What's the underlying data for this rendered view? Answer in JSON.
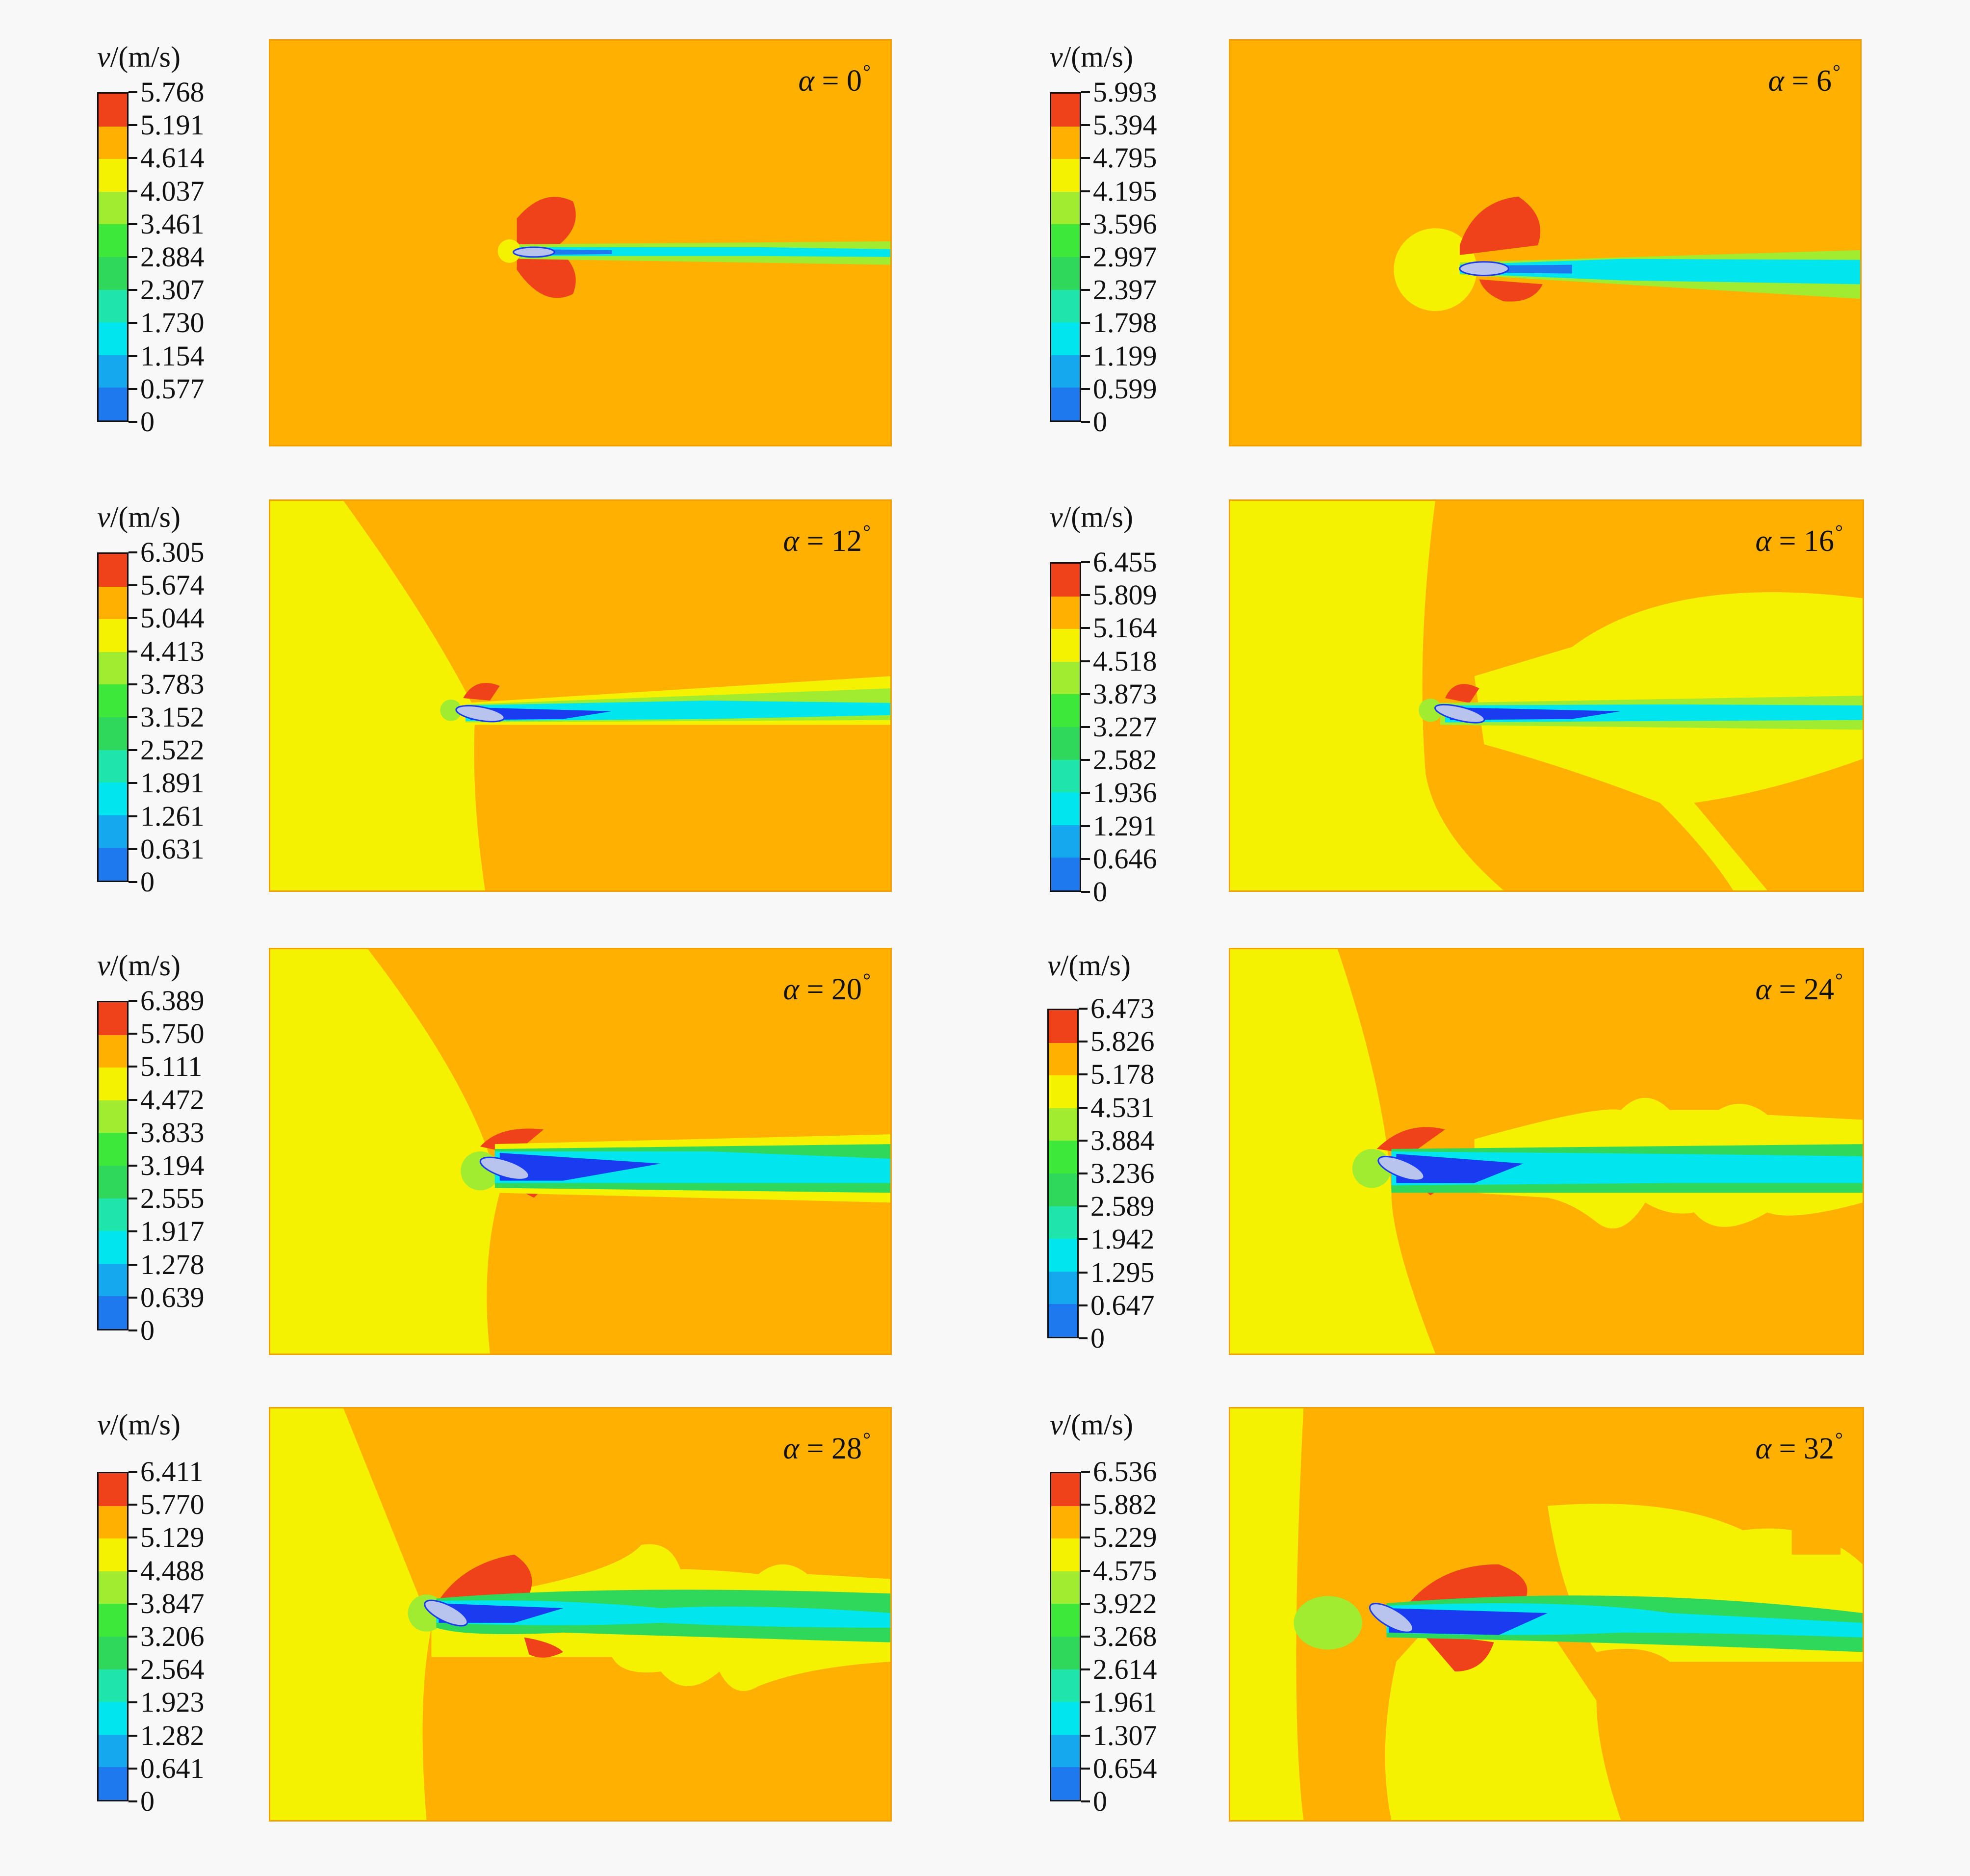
{
  "colors": {
    "scale": [
      "#1a3cf0",
      "#1e78ee",
      "#15a8ee",
      "#00e5ee",
      "#1ee5aa",
      "#2fd85a",
      "#3ee83a",
      "#a0ec30",
      "#f4f200",
      "#ffb000",
      "#f0421a"
    ],
    "freestream_orange": "#ffb000",
    "outer_yellow": "#f4f200",
    "high_red": "#f0421a",
    "airfoil": "#b8c4ec"
  },
  "panels": [
    {
      "legend_title_var": "v",
      "legend_title_unit": "/(m/s)",
      "angle_symbol": "α",
      "angle_value": "= 0",
      "angle_unit": "°",
      "ticks": [
        "5.768",
        "5.191",
        "4.614",
        "4.037",
        "3.461",
        "2.884",
        "2.307",
        "1.730",
        "1.154",
        "0.577",
        "0"
      ]
    },
    {
      "legend_title_var": "v",
      "legend_title_unit": "/(m/s)",
      "angle_symbol": "α",
      "angle_value": "= 6",
      "angle_unit": "°",
      "ticks": [
        "5.993",
        "5.394",
        "4.795",
        "4.195",
        "3.596",
        "2.997",
        "2.397",
        "1.798",
        "1.199",
        "0.599",
        "0"
      ]
    },
    {
      "legend_title_var": "v",
      "legend_title_unit": "/(m/s)",
      "angle_symbol": "α",
      "angle_value": "= 12",
      "angle_unit": "°",
      "ticks": [
        "6.305",
        "5.674",
        "5.044",
        "4.413",
        "3.783",
        "3.152",
        "2.522",
        "1.891",
        "1.261",
        "0.631",
        "0"
      ]
    },
    {
      "legend_title_var": "v",
      "legend_title_unit": "/(m/s)",
      "angle_symbol": "α",
      "angle_value": "= 16",
      "angle_unit": "°",
      "ticks": [
        "6.455",
        "5.809",
        "5.164",
        "4.518",
        "3.873",
        "3.227",
        "2.582",
        "1.936",
        "1.291",
        "0.646",
        "0"
      ]
    },
    {
      "legend_title_var": "v",
      "legend_title_unit": "/(m/s)",
      "angle_symbol": "α",
      "angle_value": "= 20",
      "angle_unit": "°",
      "ticks": [
        "6.389",
        "5.750",
        "5.111",
        "4.472",
        "3.833",
        "3.194",
        "2.555",
        "1.917",
        "1.278",
        "0.639",
        "0"
      ]
    },
    {
      "legend_title_var": "v",
      "legend_title_unit": "/(m/s)",
      "angle_symbol": "α",
      "angle_value": "= 24",
      "angle_unit": "°",
      "ticks": [
        "6.473",
        "5.826",
        "5.178",
        "4.531",
        "3.884",
        "3.236",
        "2.589",
        "1.942",
        "1.295",
        "0.647",
        "0"
      ]
    },
    {
      "legend_title_var": "v",
      "legend_title_unit": "/(m/s)",
      "angle_symbol": "α",
      "angle_value": "= 28",
      "angle_unit": "°",
      "ticks": [
        "6.411",
        "5.770",
        "5.129",
        "4.488",
        "3.847",
        "3.206",
        "2.564",
        "1.923",
        "1.282",
        "0.641",
        "0"
      ]
    },
    {
      "legend_title_var": "v",
      "legend_title_unit": "/(m/s)",
      "angle_symbol": "α",
      "angle_value": "= 32",
      "angle_unit": "°",
      "ticks": [
        "6.536",
        "5.882",
        "5.229",
        "4.575",
        "3.922",
        "3.268",
        "2.614",
        "1.961",
        "1.307",
        "0.654",
        "0"
      ]
    }
  ]
}
